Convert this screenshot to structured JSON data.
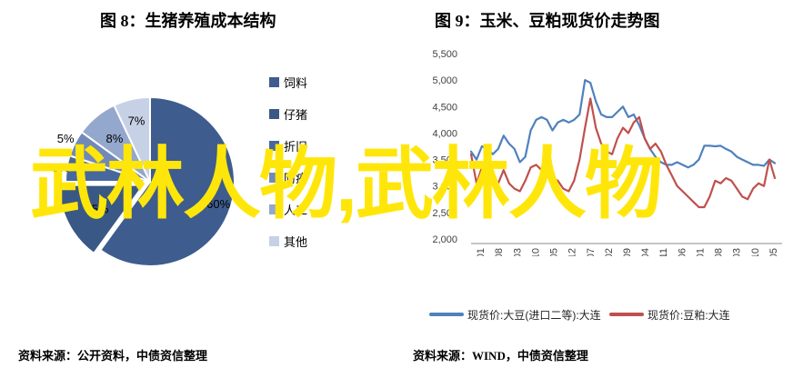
{
  "watermark": {
    "text": "武林人物,武林人物",
    "color": "#FFE60A"
  },
  "figure8": {
    "title": "图 8：生猪养殖成本结构",
    "source": "资料来源：公开资料，中债资信整理",
    "chart_data": {
      "type": "pie",
      "title": "生猪养殖成本结构",
      "start_angle_deg": 0,
      "direction": "clockwise",
      "slices": [
        {
          "label": "饲料",
          "value": 60,
          "pct_label": "60%",
          "color": "#3E5C8E",
          "exploded": false
        },
        {
          "label": "仔猪",
          "value": 15,
          "pct_label": "15%",
          "color": "#3A5885",
          "exploded": true
        },
        {
          "label": "折旧",
          "value": 5,
          "pct_label": "5%",
          "color": "#46689E",
          "exploded": false
        },
        {
          "label": "防疫",
          "value": 5,
          "pct_label": "5%",
          "color": "#7289B8",
          "exploded": false
        },
        {
          "label": "人工",
          "value": 8,
          "pct_label": "8%",
          "color": "#94A7CC",
          "exploded": false
        },
        {
          "label": "其他",
          "value": 7,
          "pct_label": "7%",
          "color": "#C7D1E6",
          "exploded": false
        }
      ],
      "legend_position": "right",
      "grid": false
    }
  },
  "figure9": {
    "title": "图 9：玉米、豆粕现货价走势图",
    "source": "资料来源：WIND，中债资信整理",
    "chart_data": {
      "type": "line",
      "x_unit": "month-index from 2009-01",
      "x": [
        0,
        2,
        4,
        6,
        8,
        10,
        12,
        14,
        16,
        18,
        20,
        22,
        24,
        26,
        28,
        30,
        32,
        34,
        36,
        38,
        40,
        42,
        44,
        46,
        48,
        50,
        52,
        54,
        56,
        58,
        60,
        62,
        64,
        66,
        68,
        70,
        72,
        74,
        76,
        78,
        80,
        82,
        84,
        86,
        88,
        90,
        92,
        94,
        96,
        98,
        100,
        102,
        104,
        106,
        108,
        110,
        112
      ],
      "x_tick_labels": [
        "2009-01",
        "2009-08",
        "2010-03",
        "2010-10",
        "2011-05",
        "2011-12",
        "2012-07",
        "2013-02",
        "2013-09",
        "2014-04",
        "2014-11",
        "2015-06",
        "2016-01",
        "2016-08",
        "2017-03",
        "2017-10",
        "2018-05"
      ],
      "ylim": [
        2000,
        5500
      ],
      "y_tick_step": 500,
      "y_tick_labels": [
        "5,500",
        "5,000",
        "4,500",
        "4,000",
        "3,500",
        "3,000",
        "2,500",
        "2,000"
      ],
      "grid": false,
      "legend_position": "bottom",
      "series": [
        {
          "name": "现货价:大豆(进口二等):大连",
          "color": "#4F81BD",
          "values": [
            3650,
            3500,
            3750,
            3700,
            3600,
            3700,
            3950,
            3800,
            3700,
            3450,
            3550,
            4050,
            4250,
            4300,
            4250,
            4050,
            4200,
            4250,
            4200,
            4250,
            4350,
            5000,
            4950,
            4600,
            4350,
            4300,
            4300,
            4400,
            4500,
            4300,
            4350,
            4150,
            3900,
            3700,
            3550,
            3450,
            3400,
            3400,
            3450,
            3400,
            3350,
            3400,
            3500,
            3760,
            3760,
            3750,
            3760,
            3700,
            3650,
            3550,
            3500,
            3450,
            3400,
            3400,
            3380,
            3500,
            3430
          ]
        },
        {
          "name": "现货价:豆粕:大连",
          "color": "#C0504D",
          "values": [
            3600,
            3050,
            3350,
            3150,
            3200,
            3050,
            3300,
            3050,
            2950,
            2900,
            3100,
            3350,
            3400,
            3300,
            3200,
            3150,
            3100,
            2950,
            2900,
            3100,
            3500,
            4100,
            4650,
            4100,
            3800,
            3650,
            3600,
            3900,
            4100,
            4000,
            4200,
            4300,
            3900,
            3700,
            3800,
            3650,
            3400,
            3200,
            3000,
            2900,
            2800,
            2700,
            2600,
            2600,
            2800,
            3100,
            3050,
            3150,
            3100,
            2950,
            2800,
            2750,
            2950,
            3050,
            3000,
            3500,
            3150
          ]
        }
      ]
    }
  }
}
